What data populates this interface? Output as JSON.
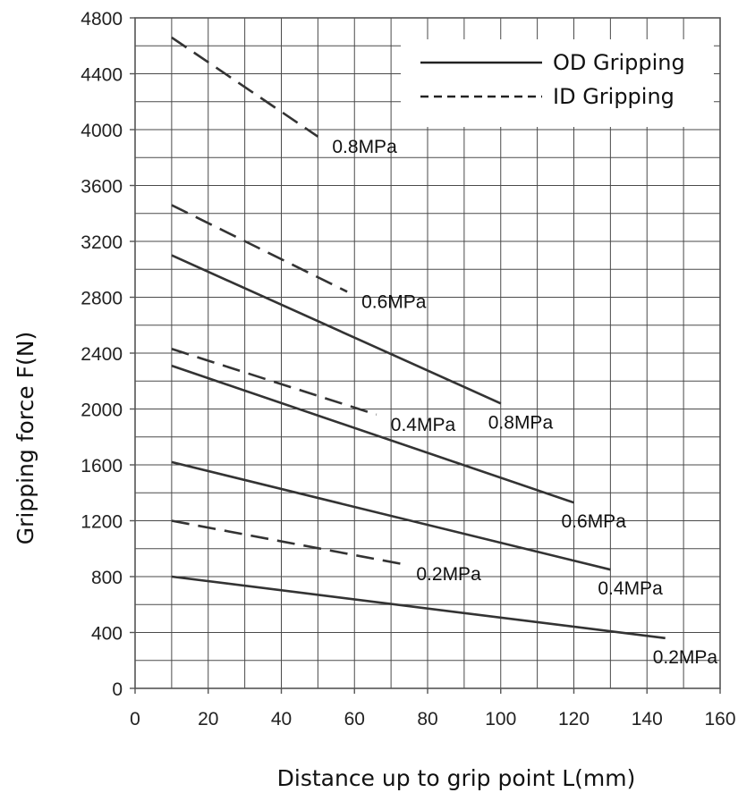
{
  "chart_data": {
    "type": "line",
    "title": "",
    "xlabel": "Distance up to grip point  L(mm)",
    "ylabel": "Gripping force  F(N)",
    "xlim": [
      0,
      160
    ],
    "ylim": [
      0,
      4800
    ],
    "x_ticks": [
      0,
      20,
      40,
      60,
      80,
      100,
      120,
      140,
      160
    ],
    "y_ticks": [
      0,
      400,
      800,
      1200,
      1600,
      2000,
      2400,
      2800,
      3200,
      3600,
      4000,
      4400,
      4800
    ],
    "grid": true,
    "x_grid_step": 10,
    "y_grid_step": 200,
    "legend": {
      "placement": "top-right",
      "entries": [
        {
          "label": "OD Gripping",
          "style": "solid"
        },
        {
          "label": "ID Gripping",
          "style": "dashed"
        }
      ]
    },
    "line_color": "#333333",
    "series": [
      {
        "group": "OD Gripping",
        "label": "0.8MPa",
        "style": "solid",
        "x": [
          10,
          100
        ],
        "y": [
          3100,
          2040
        ]
      },
      {
        "group": "OD Gripping",
        "label": "0.6MPa",
        "style": "solid",
        "x": [
          10,
          120
        ],
        "y": [
          2310,
          1330
        ]
      },
      {
        "group": "OD Gripping",
        "label": "0.4MPa",
        "style": "solid",
        "x": [
          10,
          130
        ],
        "y": [
          1620,
          850
        ]
      },
      {
        "group": "OD Gripping",
        "label": "0.2MPa",
        "style": "solid",
        "x": [
          10,
          145
        ],
        "y": [
          800,
          360
        ]
      },
      {
        "group": "ID Gripping",
        "label": "0.8MPa",
        "style": "dashed",
        "x": [
          10,
          50
        ],
        "y": [
          4660,
          3950
        ]
      },
      {
        "group": "ID Gripping",
        "label": "0.6MPa",
        "style": "dashed",
        "x": [
          10,
          58
        ],
        "y": [
          3460,
          2840
        ]
      },
      {
        "group": "ID Gripping",
        "label": "0.4MPa",
        "style": "dashed",
        "x": [
          10,
          66
        ],
        "y": [
          2430,
          1960
        ]
      },
      {
        "group": "ID Gripping",
        "label": "0.2MPa",
        "style": "dashed",
        "x": [
          10,
          73
        ],
        "y": [
          1200,
          890
        ]
      }
    ]
  }
}
